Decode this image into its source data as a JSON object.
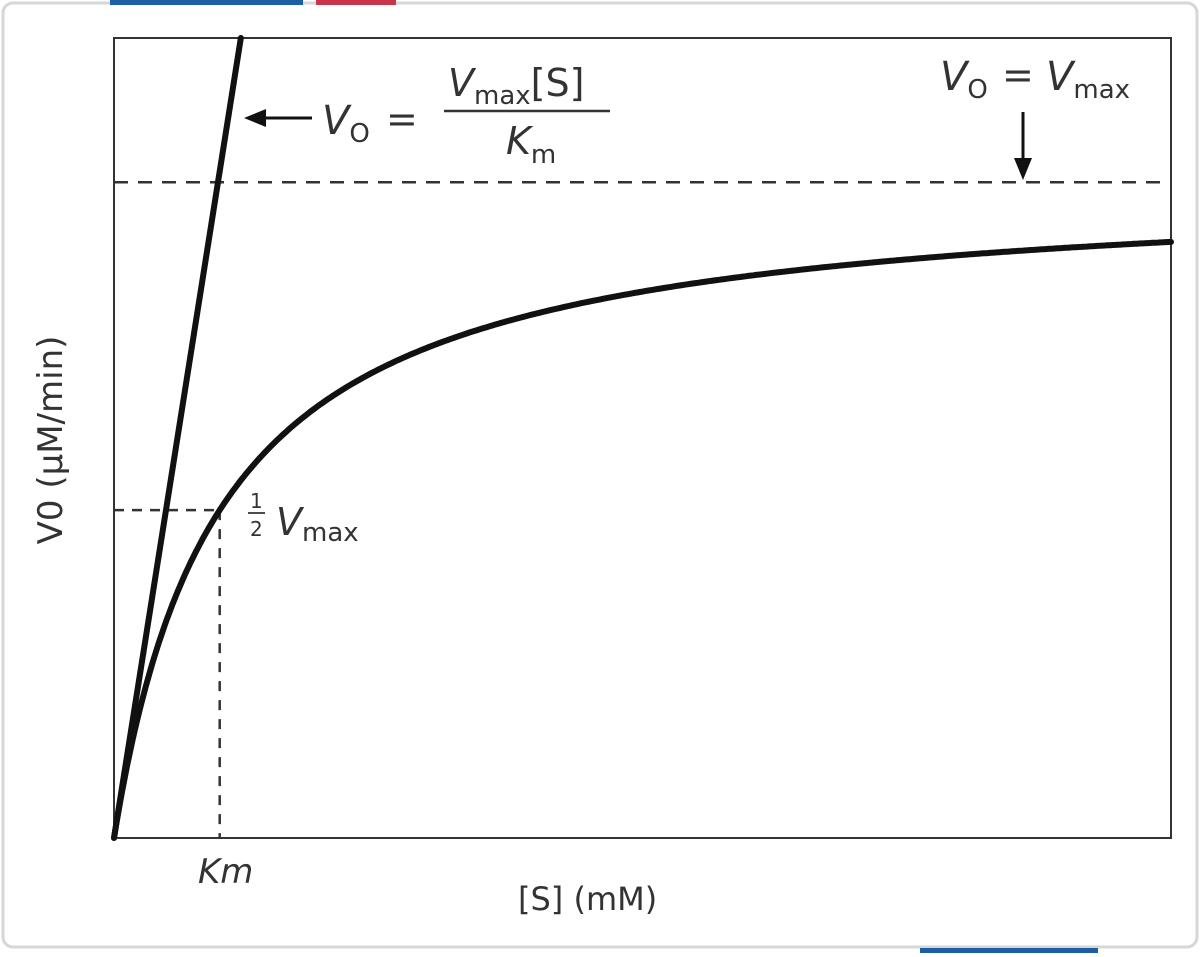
{
  "colors": {
    "accent_blue": "#1d5fa3",
    "accent_red": "#c8344a",
    "card_border": "#d6d6d6",
    "ink": "#111111",
    "label": "#333333"
  },
  "chart_data": {
    "type": "line",
    "title": "",
    "xlabel": "[S] (mM)",
    "ylabel": "V0 (μM/min)",
    "x_tick_label": "Km",
    "vmax": 1.0,
    "km": 1.0,
    "xlim": [
      0,
      10
    ],
    "ylim": [
      0,
      1.22
    ],
    "grid": false,
    "series": [
      {
        "curve": "michaelis-menten",
        "x": [
          0,
          0.25,
          0.5,
          0.75,
          1,
          1.5,
          2,
          3,
          4,
          5,
          6,
          7,
          8,
          9,
          10
        ],
        "y": [
          0,
          0.2,
          0.333,
          0.429,
          0.5,
          0.6,
          0.667,
          0.75,
          0.8,
          0.833,
          0.857,
          0.875,
          0.889,
          0.9,
          0.909
        ]
      },
      {
        "curve": "initial-slope",
        "x": [
          0,
          1.2
        ],
        "y": [
          0,
          1.22
        ]
      }
    ],
    "reference_lines": {
      "vmax_level": 1.0,
      "half_vmax_level": 0.5,
      "km_position": 1.0
    },
    "annotations": {
      "slope_eq_lhs": "V",
      "slope_eq_lhs_sub": "O",
      "slope_eq_equals": "=",
      "slope_eq_num": "V",
      "slope_eq_num_sub": "max",
      "slope_eq_num_tail": "[S]",
      "slope_eq_den": "K",
      "slope_eq_den_sub": "m",
      "vmax_eq_lhs": "V",
      "vmax_eq_lhs_sub": "O",
      "vmax_eq_equals": "=",
      "vmax_eq_rhs": "V",
      "vmax_eq_rhs_sub": "max",
      "half_num": "1",
      "half_den": "2",
      "half_v": "V",
      "half_v_sub": "max"
    }
  }
}
